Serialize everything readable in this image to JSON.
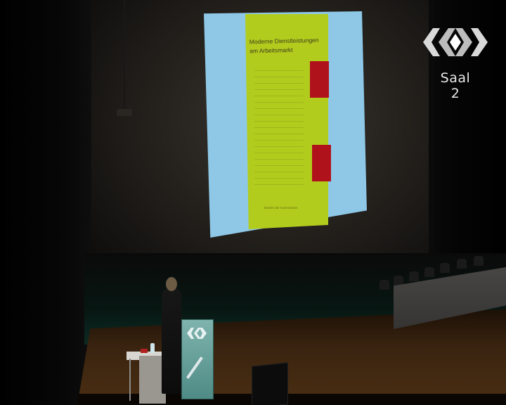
{
  "overlay": {
    "hall_label": "Saal 2"
  },
  "slide": {
    "book_title_line1": "Moderne Dienstleistungen",
    "book_title_line2": "am Arbeitsmarkt",
    "book_footer": "Bericht der Kommission",
    "cover_color": "#b2cc1e",
    "accent_color": "#b0121c",
    "background_color": "#8ec8e6"
  },
  "icons": {
    "logo": "conference-logo-icon",
    "lectern_logo": "lectern-logo-icon"
  }
}
